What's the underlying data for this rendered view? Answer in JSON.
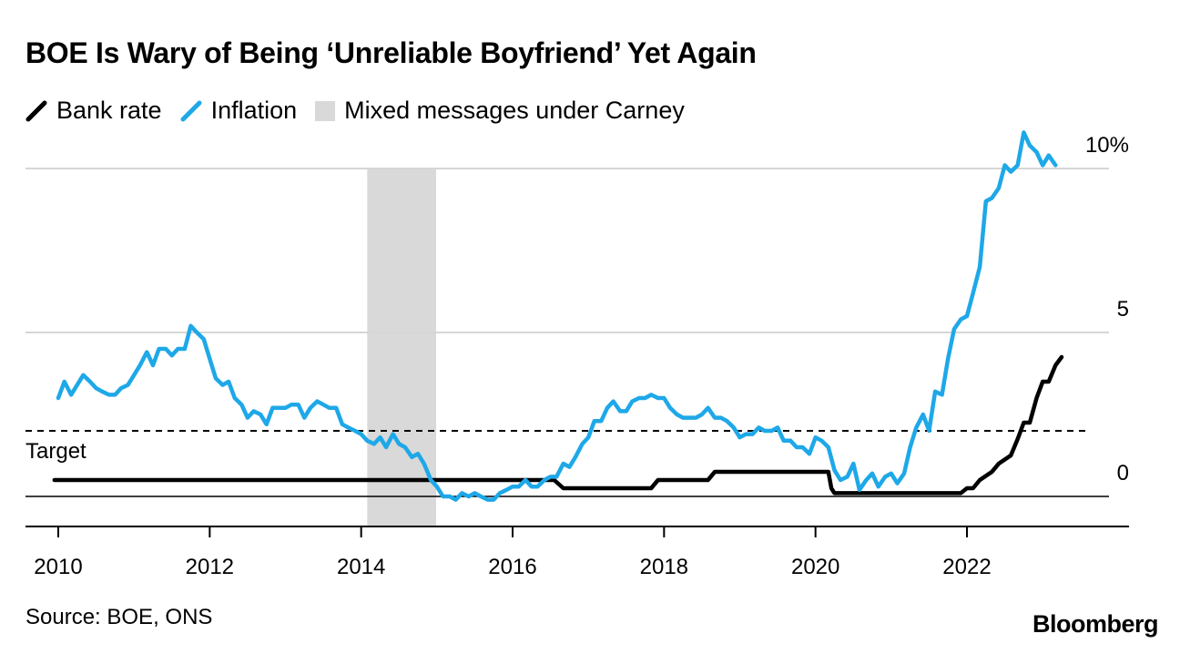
{
  "chart_data": {
    "type": "line",
    "title": "BOE Is Wary of Being ‘Unreliable Boyfriend’ Yet Again",
    "legend": [
      {
        "name": "Bank rate",
        "color": "#000000",
        "kind": "line"
      },
      {
        "name": "Inflation",
        "color": "#1ea8e8",
        "kind": "line"
      },
      {
        "name": "Mixed messages under Carney",
        "color": "#d9d9d9",
        "kind": "area"
      }
    ],
    "legend_position": "top-left",
    "xlim": [
      2010,
      2023.6
    ],
    "ylim": [
      -0.9,
      10.6
    ],
    "x_ticks": [
      2010,
      2012,
      2014,
      2016,
      2018,
      2020,
      2022
    ],
    "x_tick_labels": [
      "2010",
      "2012",
      "2014",
      "2016",
      "2018",
      "2020",
      "2022"
    ],
    "y_ticks": [
      0,
      5,
      10
    ],
    "y_tick_labels": [
      "0",
      "5",
      "10%"
    ],
    "grid": true,
    "target": {
      "value": 2,
      "label": "Target"
    },
    "shaded_region": {
      "x_start": 2014.08,
      "x_end": 2014.99,
      "label": "Mixed messages under Carney"
    },
    "series": [
      {
        "name": "Bank rate",
        "color": "#000000",
        "points": [
          [
            2009.95,
            0.5
          ],
          [
            2016.55,
            0.5
          ],
          [
            2016.67,
            0.25
          ],
          [
            2017.83,
            0.25
          ],
          [
            2017.92,
            0.5
          ],
          [
            2018.58,
            0.5
          ],
          [
            2018.67,
            0.75
          ],
          [
            2020.17,
            0.75
          ],
          [
            2020.21,
            0.25
          ],
          [
            2020.25,
            0.1
          ],
          [
            2021.92,
            0.1
          ],
          [
            2022.0,
            0.25
          ],
          [
            2022.08,
            0.25
          ],
          [
            2022.17,
            0.5
          ],
          [
            2022.33,
            0.75
          ],
          [
            2022.42,
            1.0
          ],
          [
            2022.58,
            1.25
          ],
          [
            2022.67,
            1.75
          ],
          [
            2022.75,
            2.25
          ],
          [
            2022.83,
            2.25
          ],
          [
            2022.92,
            3.0
          ],
          [
            2023.0,
            3.5
          ],
          [
            2023.08,
            3.5
          ],
          [
            2023.17,
            4.0
          ],
          [
            2023.25,
            4.25
          ]
        ]
      },
      {
        "name": "Inflation",
        "color": "#1ea8e8",
        "points": [
          [
            2010.0,
            3.0
          ],
          [
            2010.08,
            3.5
          ],
          [
            2010.17,
            3.1
          ],
          [
            2010.25,
            3.4
          ],
          [
            2010.33,
            3.7
          ],
          [
            2010.42,
            3.5
          ],
          [
            2010.5,
            3.3
          ],
          [
            2010.58,
            3.2
          ],
          [
            2010.67,
            3.1
          ],
          [
            2010.75,
            3.1
          ],
          [
            2010.83,
            3.3
          ],
          [
            2010.92,
            3.4
          ],
          [
            2011.0,
            3.7
          ],
          [
            2011.08,
            4.0
          ],
          [
            2011.17,
            4.4
          ],
          [
            2011.25,
            4.0
          ],
          [
            2011.33,
            4.5
          ],
          [
            2011.42,
            4.5
          ],
          [
            2011.5,
            4.3
          ],
          [
            2011.58,
            4.5
          ],
          [
            2011.67,
            4.5
          ],
          [
            2011.75,
            5.2
          ],
          [
            2011.83,
            5.0
          ],
          [
            2011.92,
            4.8
          ],
          [
            2012.0,
            4.2
          ],
          [
            2012.08,
            3.6
          ],
          [
            2012.17,
            3.4
          ],
          [
            2012.25,
            3.5
          ],
          [
            2012.33,
            3.0
          ],
          [
            2012.42,
            2.8
          ],
          [
            2012.5,
            2.4
          ],
          [
            2012.58,
            2.6
          ],
          [
            2012.67,
            2.5
          ],
          [
            2012.75,
            2.2
          ],
          [
            2012.83,
            2.7
          ],
          [
            2012.92,
            2.7
          ],
          [
            2013.0,
            2.7
          ],
          [
            2013.08,
            2.8
          ],
          [
            2013.17,
            2.8
          ],
          [
            2013.25,
            2.4
          ],
          [
            2013.33,
            2.7
          ],
          [
            2013.42,
            2.9
          ],
          [
            2013.5,
            2.8
          ],
          [
            2013.58,
            2.7
          ],
          [
            2013.67,
            2.7
          ],
          [
            2013.75,
            2.2
          ],
          [
            2013.83,
            2.1
          ],
          [
            2013.92,
            2.0
          ],
          [
            2014.0,
            1.9
          ],
          [
            2014.08,
            1.7
          ],
          [
            2014.17,
            1.6
          ],
          [
            2014.25,
            1.8
          ],
          [
            2014.33,
            1.5
          ],
          [
            2014.42,
            1.9
          ],
          [
            2014.5,
            1.6
          ],
          [
            2014.58,
            1.5
          ],
          [
            2014.67,
            1.2
          ],
          [
            2014.75,
            1.3
          ],
          [
            2014.83,
            1.0
          ],
          [
            2014.92,
            0.5
          ],
          [
            2015.0,
            0.3
          ],
          [
            2015.08,
            0.0
          ],
          [
            2015.17,
            0.0
          ],
          [
            2015.25,
            -0.1
          ],
          [
            2015.33,
            0.1
          ],
          [
            2015.42,
            0.0
          ],
          [
            2015.5,
            0.1
          ],
          [
            2015.58,
            0.0
          ],
          [
            2015.67,
            -0.1
          ],
          [
            2015.75,
            -0.1
          ],
          [
            2015.83,
            0.1
          ],
          [
            2015.92,
            0.2
          ],
          [
            2016.0,
            0.3
          ],
          [
            2016.08,
            0.3
          ],
          [
            2016.17,
            0.5
          ],
          [
            2016.25,
            0.3
          ],
          [
            2016.33,
            0.3
          ],
          [
            2016.42,
            0.5
          ],
          [
            2016.5,
            0.6
          ],
          [
            2016.58,
            0.6
          ],
          [
            2016.67,
            1.0
          ],
          [
            2016.75,
            0.9
          ],
          [
            2016.83,
            1.2
          ],
          [
            2016.92,
            1.6
          ],
          [
            2017.0,
            1.8
          ],
          [
            2017.08,
            2.3
          ],
          [
            2017.17,
            2.3
          ],
          [
            2017.25,
            2.7
          ],
          [
            2017.33,
            2.9
          ],
          [
            2017.42,
            2.6
          ],
          [
            2017.5,
            2.6
          ],
          [
            2017.58,
            2.9
          ],
          [
            2017.67,
            3.0
          ],
          [
            2017.75,
            3.0
          ],
          [
            2017.83,
            3.1
          ],
          [
            2017.92,
            3.0
          ],
          [
            2018.0,
            3.0
          ],
          [
            2018.08,
            2.7
          ],
          [
            2018.17,
            2.5
          ],
          [
            2018.25,
            2.4
          ],
          [
            2018.33,
            2.4
          ],
          [
            2018.42,
            2.4
          ],
          [
            2018.5,
            2.5
          ],
          [
            2018.58,
            2.7
          ],
          [
            2018.67,
            2.4
          ],
          [
            2018.75,
            2.4
          ],
          [
            2018.83,
            2.3
          ],
          [
            2018.92,
            2.1
          ],
          [
            2019.0,
            1.8
          ],
          [
            2019.08,
            1.9
          ],
          [
            2019.17,
            1.9
          ],
          [
            2019.25,
            2.1
          ],
          [
            2019.33,
            2.0
          ],
          [
            2019.42,
            2.0
          ],
          [
            2019.5,
            2.1
          ],
          [
            2019.58,
            1.7
          ],
          [
            2019.67,
            1.7
          ],
          [
            2019.75,
            1.5
          ],
          [
            2019.83,
            1.5
          ],
          [
            2019.92,
            1.3
          ],
          [
            2020.0,
            1.8
          ],
          [
            2020.08,
            1.7
          ],
          [
            2020.17,
            1.5
          ],
          [
            2020.25,
            0.8
          ],
          [
            2020.33,
            0.5
          ],
          [
            2020.42,
            0.6
          ],
          [
            2020.5,
            1.0
          ],
          [
            2020.58,
            0.2
          ],
          [
            2020.67,
            0.5
          ],
          [
            2020.75,
            0.7
          ],
          [
            2020.83,
            0.3
          ],
          [
            2020.92,
            0.6
          ],
          [
            2021.0,
            0.7
          ],
          [
            2021.08,
            0.4
          ],
          [
            2021.17,
            0.7
          ],
          [
            2021.25,
            1.5
          ],
          [
            2021.33,
            2.1
          ],
          [
            2021.42,
            2.5
          ],
          [
            2021.5,
            2.0
          ],
          [
            2021.58,
            3.2
          ],
          [
            2021.67,
            3.1
          ],
          [
            2021.75,
            4.2
          ],
          [
            2021.83,
            5.1
          ],
          [
            2021.92,
            5.4
          ],
          [
            2022.0,
            5.5
          ],
          [
            2022.08,
            6.2
          ],
          [
            2022.17,
            7.0
          ],
          [
            2022.25,
            9.0
          ],
          [
            2022.33,
            9.1
          ],
          [
            2022.42,
            9.4
          ],
          [
            2022.5,
            10.1
          ],
          [
            2022.58,
            9.9
          ],
          [
            2022.67,
            10.1
          ],
          [
            2022.75,
            11.1
          ],
          [
            2022.83,
            10.7
          ],
          [
            2022.92,
            10.5
          ],
          [
            2023.0,
            10.1
          ],
          [
            2023.08,
            10.4
          ],
          [
            2023.17,
            10.1
          ]
        ]
      }
    ]
  },
  "source": "Source: BOE, ONS",
  "brand": "Bloomberg"
}
